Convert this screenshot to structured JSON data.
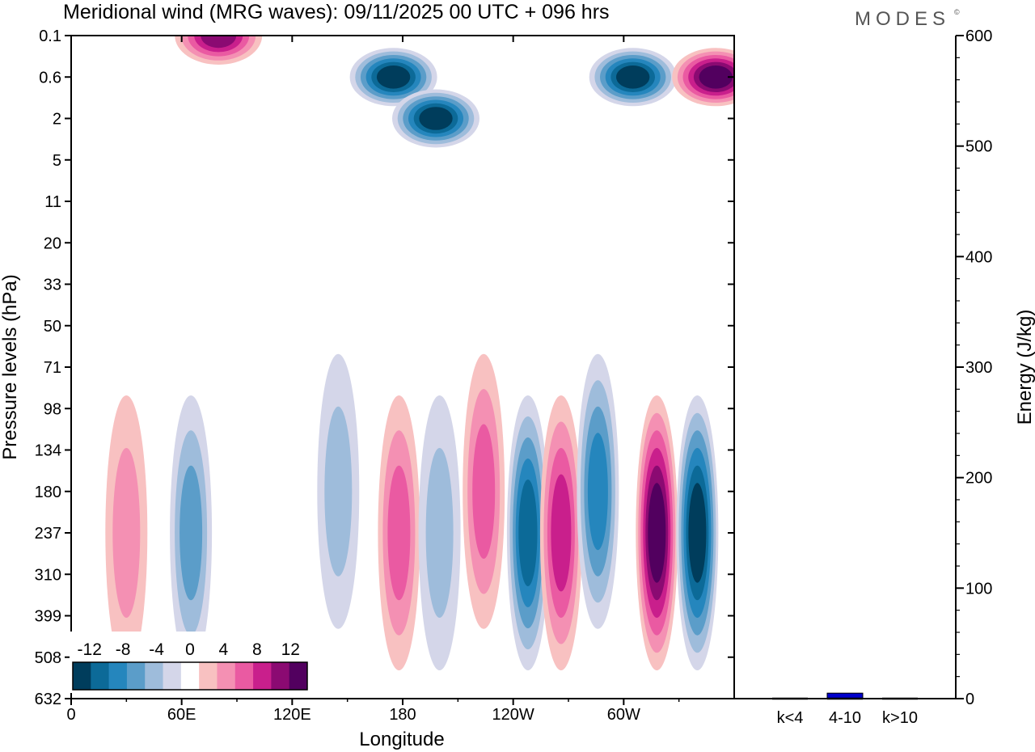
{
  "header": {
    "title": "Meridional wind (MRG waves):  09/11/2025  00 UTC  + 096 hrs",
    "brand": "MODES",
    "brand_mark": "©"
  },
  "chart_data": [
    {
      "type": "heatmap",
      "title": "Meridional wind (MRG waves)",
      "xlabel": "Longitude",
      "ylabel": "Pressure levels (hPa)",
      "x_ticks": [
        "0",
        "60E",
        "120E",
        "180",
        "120W",
        "60W"
      ],
      "x_tick_values": [
        0,
        60,
        120,
        180,
        240,
        300
      ],
      "xlim": [
        0,
        360
      ],
      "y_ticks": [
        "0.1",
        "0.6",
        "2",
        "5",
        "11",
        "20",
        "33",
        "50",
        "71",
        "98",
        "134",
        "180",
        "237",
        "310",
        "399",
        "508",
        "632"
      ],
      "colorbar": {
        "labels": [
          "-12",
          "-8",
          "-4",
          "0",
          "4",
          "8",
          "12"
        ],
        "label_values": [
          -12,
          -8,
          -4,
          0,
          4,
          8,
          12
        ],
        "levels": [
          -14,
          -12,
          -10,
          -8,
          -6,
          -4,
          -2,
          2,
          4,
          6,
          8,
          10,
          12,
          14
        ],
        "colors": [
          "#003d5c",
          "#0c6a98",
          "#2586bd",
          "#5b9dc9",
          "#9ebcdb",
          "#d4d6e9",
          "#ffffff",
          "#f8c1c1",
          "#f490b3",
          "#ea5aa2",
          "#c91f8c",
          "#8b0a72",
          "#52005f"
        ]
      },
      "features": [
        {
          "lon": 30,
          "level": "237",
          "value": 6
        },
        {
          "lon": 65,
          "level": "237",
          "value": -8
        },
        {
          "lon": 145,
          "level": "180",
          "value": -6
        },
        {
          "lon": 178,
          "level": "237",
          "value": 8
        },
        {
          "lon": 200,
          "level": "237",
          "value": -6
        },
        {
          "lon": 224,
          "level": "180",
          "value": 8
        },
        {
          "lon": 248,
          "level": "237",
          "value": -12
        },
        {
          "lon": 266,
          "level": "237",
          "value": 10
        },
        {
          "lon": 286,
          "level": "180",
          "value": -10
        },
        {
          "lon": 318,
          "level": "237",
          "value": 14
        },
        {
          "lon": 340,
          "level": "237",
          "value": -14
        },
        {
          "lon": 80,
          "level": "0.1",
          "value": 12
        },
        {
          "lon": 175,
          "level": "0.6",
          "value": -14
        },
        {
          "lon": 198,
          "level": "2",
          "value": -14
        },
        {
          "lon": 305,
          "level": "0.6",
          "value": -14
        },
        {
          "lon": 350,
          "level": "0.6",
          "value": 14
        }
      ]
    },
    {
      "type": "bar",
      "ylabel": "Energy (J/kg)",
      "ylim": [
        0,
        600
      ],
      "y_ticks": [
        "0",
        "100",
        "200",
        "300",
        "400",
        "500",
        "600"
      ],
      "categories": [
        "k<4",
        "4-10",
        "k>10"
      ],
      "values": [
        0,
        5,
        0
      ],
      "bar_color": "#0000cc"
    }
  ]
}
